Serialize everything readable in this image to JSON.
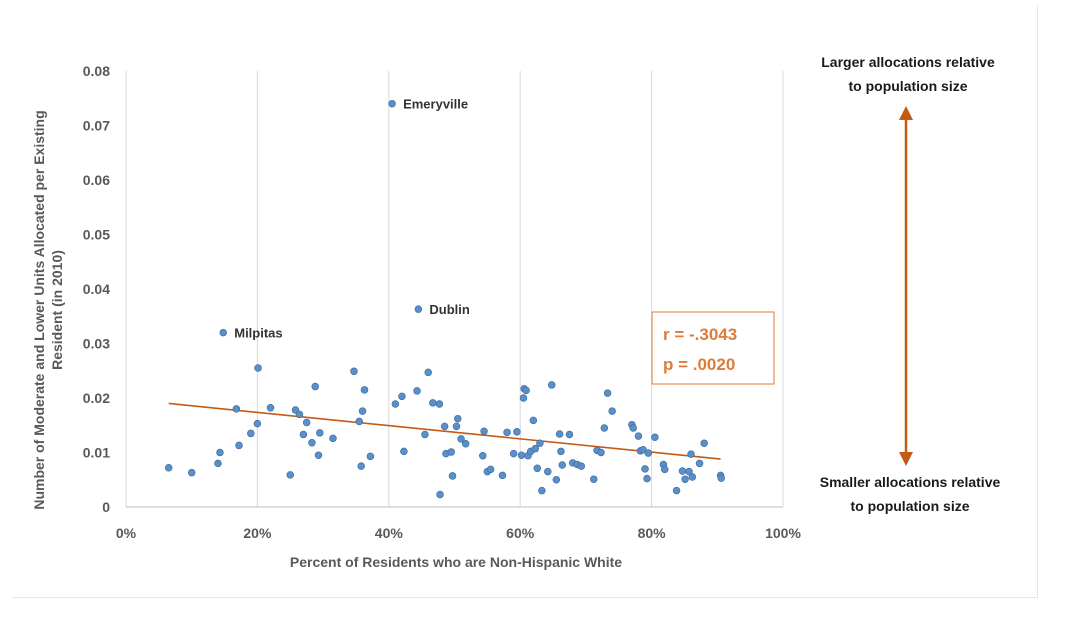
{
  "chart_data": {
    "type": "scatter",
    "title": "",
    "xlabel": "Percent of Residents who are Non-Hispanic White",
    "ylabel_lines": [
      "Number of Moderate and Lower Units Allocated per Existing",
      "Resident (in 2010)"
    ],
    "xlim": [
      0,
      1
    ],
    "ylim": [
      0,
      0.08
    ],
    "x_ticks": [
      0,
      0.2,
      0.4,
      0.6,
      0.8,
      1.0
    ],
    "x_tick_labels": [
      "0%",
      "20%",
      "40%",
      "60%",
      "80%",
      "100%"
    ],
    "y_ticks": [
      0,
      0.01,
      0.02,
      0.03,
      0.04,
      0.05,
      0.06,
      0.07,
      0.08
    ],
    "y_tick_labels": [
      "0",
      "0.01",
      "0.02",
      "0.03",
      "0.04",
      "0.05",
      "0.06",
      "0.07",
      "0.08"
    ],
    "grid": "vertical",
    "point_color": "#5b8fc9",
    "trend_color": "#c55a11",
    "stat_color": "#e07b39",
    "trendline": {
      "x": [
        0.065,
        0.905
      ],
      "y": [
        0.019,
        0.0088
      ]
    },
    "labeled_points": [
      {
        "label": "Emeryville",
        "x": 0.405,
        "y": 0.074
      },
      {
        "label": "Dublin",
        "x": 0.445,
        "y": 0.0363
      },
      {
        "label": "Milpitas",
        "x": 0.148,
        "y": 0.032
      }
    ],
    "points": [
      [
        0.065,
        0.0072
      ],
      [
        0.1,
        0.0063
      ],
      [
        0.14,
        0.008
      ],
      [
        0.143,
        0.01
      ],
      [
        0.168,
        0.018
      ],
      [
        0.172,
        0.0113
      ],
      [
        0.19,
        0.0135
      ],
      [
        0.2,
        0.0153
      ],
      [
        0.201,
        0.0255
      ],
      [
        0.22,
        0.0182
      ],
      [
        0.25,
        0.0059
      ],
      [
        0.258,
        0.0178
      ],
      [
        0.264,
        0.017
      ],
      [
        0.27,
        0.0133
      ],
      [
        0.275,
        0.0155
      ],
      [
        0.283,
        0.0118
      ],
      [
        0.288,
        0.0221
      ],
      [
        0.293,
        0.0095
      ],
      [
        0.295,
        0.0136
      ],
      [
        0.315,
        0.0126
      ],
      [
        0.347,
        0.0249
      ],
      [
        0.355,
        0.0157
      ],
      [
        0.358,
        0.0075
      ],
      [
        0.36,
        0.0176
      ],
      [
        0.363,
        0.0215
      ],
      [
        0.372,
        0.0093
      ],
      [
        0.41,
        0.0189
      ],
      [
        0.42,
        0.0203
      ],
      [
        0.423,
        0.0102
      ],
      [
        0.443,
        0.0213
      ],
      [
        0.455,
        0.0133
      ],
      [
        0.46,
        0.0247
      ],
      [
        0.467,
        0.0191
      ],
      [
        0.477,
        0.0189
      ],
      [
        0.478,
        0.0023
      ],
      [
        0.485,
        0.0148
      ],
      [
        0.487,
        0.0098
      ],
      [
        0.495,
        0.0101
      ],
      [
        0.497,
        0.0057
      ],
      [
        0.503,
        0.0148
      ],
      [
        0.505,
        0.0162
      ],
      [
        0.51,
        0.0125
      ],
      [
        0.517,
        0.0116
      ],
      [
        0.543,
        0.0094
      ],
      [
        0.545,
        0.0139
      ],
      [
        0.55,
        0.0065
      ],
      [
        0.555,
        0.0069
      ],
      [
        0.573,
        0.0058
      ],
      [
        0.58,
        0.0137
      ],
      [
        0.59,
        0.0098
      ],
      [
        0.595,
        0.0138
      ],
      [
        0.602,
        0.0095
      ],
      [
        0.605,
        0.02
      ],
      [
        0.606,
        0.0217
      ],
      [
        0.609,
        0.0214
      ],
      [
        0.612,
        0.0094
      ],
      [
        0.616,
        0.0102
      ],
      [
        0.62,
        0.0159
      ],
      [
        0.623,
        0.0107
      ],
      [
        0.626,
        0.0071
      ],
      [
        0.63,
        0.0117
      ],
      [
        0.633,
        0.003
      ],
      [
        0.642,
        0.0065
      ],
      [
        0.648,
        0.0224
      ],
      [
        0.655,
        0.005
      ],
      [
        0.66,
        0.0134
      ],
      [
        0.662,
        0.0102
      ],
      [
        0.664,
        0.0077
      ],
      [
        0.675,
        0.0133
      ],
      [
        0.68,
        0.0081
      ],
      [
        0.687,
        0.0078
      ],
      [
        0.693,
        0.0075
      ],
      [
        0.712,
        0.0051
      ],
      [
        0.717,
        0.0104
      ],
      [
        0.723,
        0.01
      ],
      [
        0.728,
        0.0145
      ],
      [
        0.733,
        0.0209
      ],
      [
        0.74,
        0.0176
      ],
      [
        0.77,
        0.0151
      ],
      [
        0.772,
        0.0145
      ],
      [
        0.78,
        0.013
      ],
      [
        0.783,
        0.0103
      ],
      [
        0.787,
        0.0105
      ],
      [
        0.79,
        0.007
      ],
      [
        0.793,
        0.0052
      ],
      [
        0.795,
        0.0099
      ],
      [
        0.805,
        0.0128
      ],
      [
        0.818,
        0.0078
      ],
      [
        0.82,
        0.0069
      ],
      [
        0.838,
        0.003
      ],
      [
        0.847,
        0.0066
      ],
      [
        0.851,
        0.0051
      ],
      [
        0.857,
        0.0065
      ],
      [
        0.86,
        0.0097
      ],
      [
        0.862,
        0.0055
      ],
      [
        0.873,
        0.008
      ],
      [
        0.88,
        0.0117
      ],
      [
        0.905,
        0.0058
      ],
      [
        0.906,
        0.0053
      ]
    ]
  },
  "stats": {
    "r": "r = -.3043",
    "p": "p = .0020"
  },
  "annotations": {
    "top_line1": "Larger allocations relative",
    "top_line2": "to population size",
    "bottom_line1": "Smaller allocations relative",
    "bottom_line2": "to population size"
  }
}
